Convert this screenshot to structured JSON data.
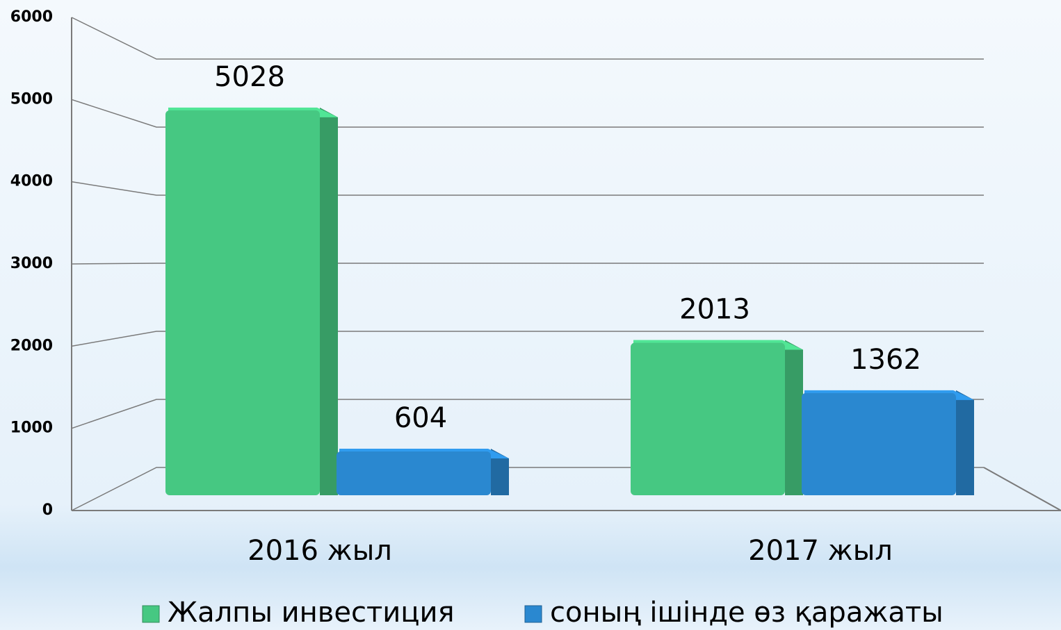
{
  "chart_data": {
    "type": "bar",
    "categories": [
      "2016 жыл",
      "2017 жыл"
    ],
    "series": [
      {
        "name": "Жалпы инвестиция",
        "color": "#46c882",
        "values": [
          5028,
          2013
        ]
      },
      {
        "name": "соның ішінде өз қаражаты",
        "color": "#2a88d0",
        "values": [
          604,
          1362
        ]
      }
    ],
    "ylim": [
      0,
      6000
    ],
    "yticks": [
      0,
      1000,
      2000,
      3000,
      4000,
      5000,
      6000
    ],
    "grid": true,
    "legend": "bottom"
  }
}
